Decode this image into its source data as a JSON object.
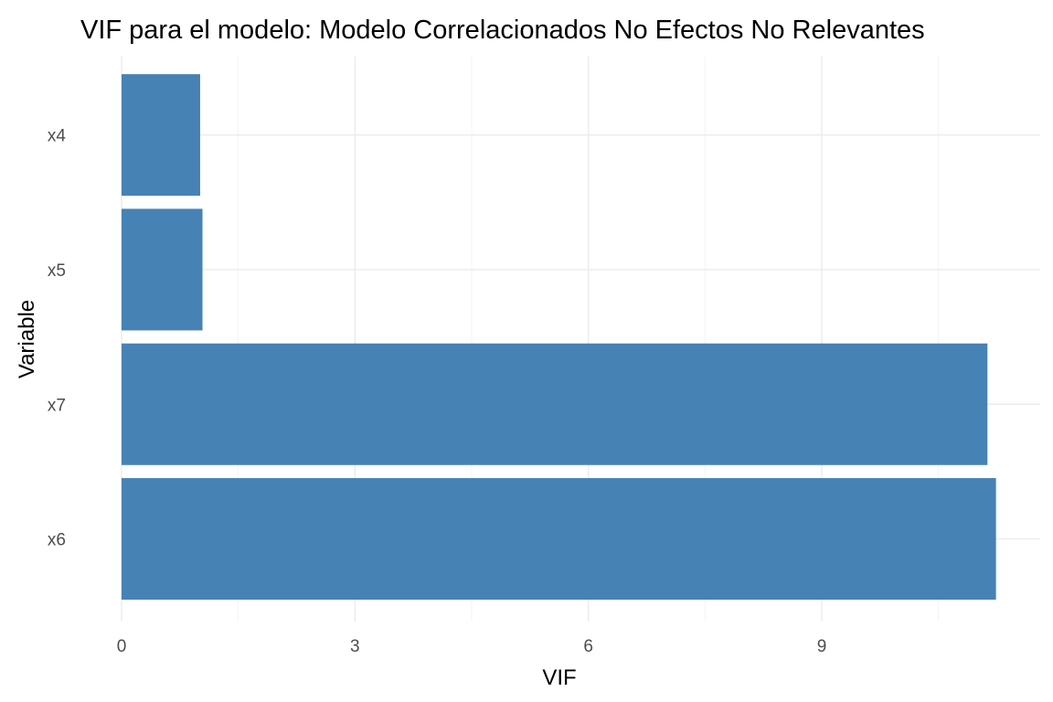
{
  "chart_data": {
    "type": "bar",
    "orientation": "horizontal",
    "title": "VIF para el modelo: Modelo Correlacionados No Efectos No Relevantes",
    "xlabel": "VIF",
    "ylabel": "Variable",
    "categories": [
      "x4",
      "x5",
      "x7",
      "x6"
    ],
    "values": [
      1.01,
      1.04,
      11.13,
      11.24
    ],
    "xlim": [
      0,
      11.8
    ],
    "xticks": [
      0,
      3,
      6,
      9
    ],
    "bar_color": "#4682b4",
    "grid": true,
    "legend": "none"
  }
}
